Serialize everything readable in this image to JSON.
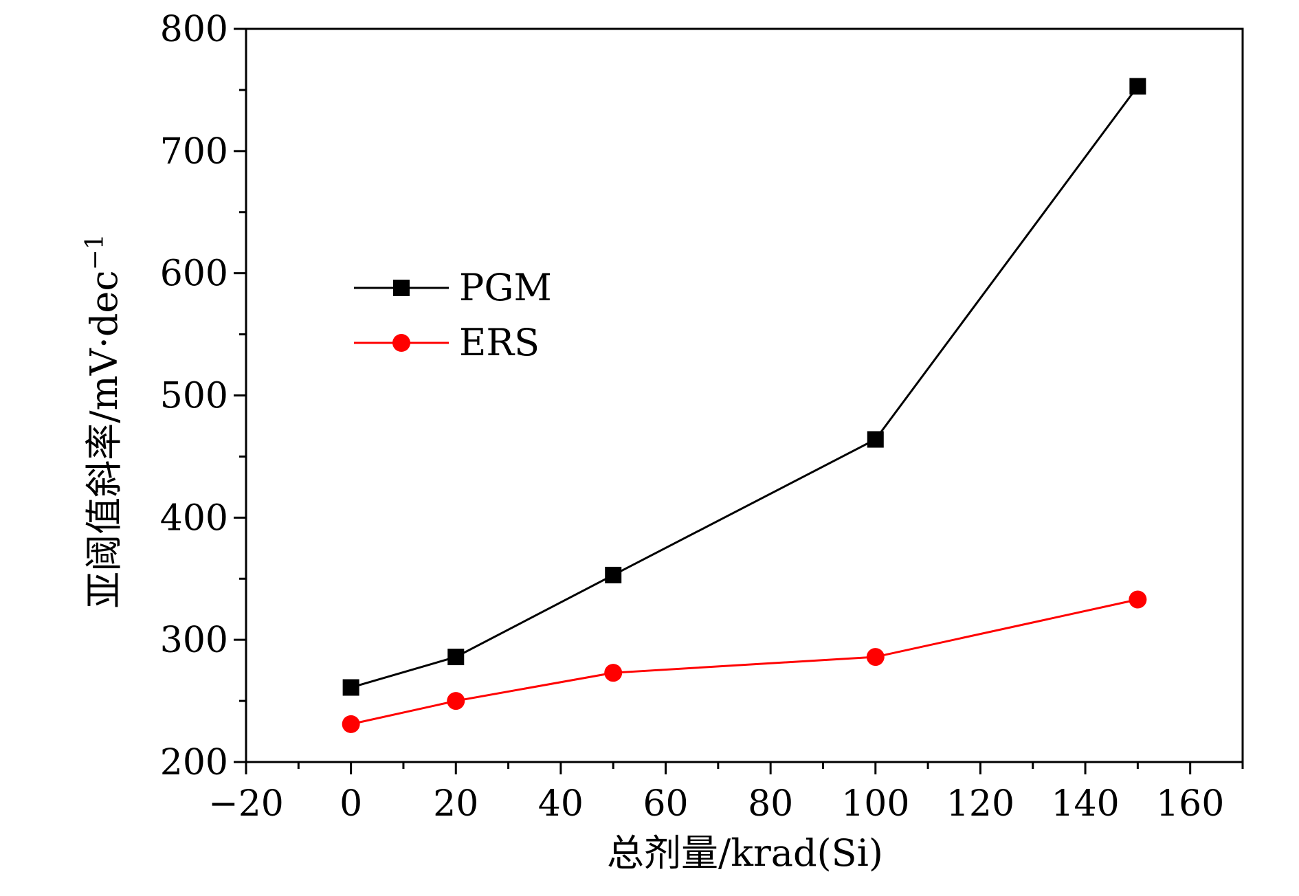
{
  "chart_data": {
    "type": "line",
    "title": "",
    "xlabel": "总剂量/krad(Si)",
    "ylabel": "亚阈值斜率/mV·dec",
    "ylabel_superscript": "−1",
    "xlim": [
      -20,
      170
    ],
    "ylim": [
      200,
      800
    ],
    "x_ticks": [
      -20,
      0,
      20,
      40,
      60,
      80,
      100,
      120,
      140,
      160
    ],
    "x_tick_labels": [
      "−20",
      "0",
      "20",
      "40",
      "60",
      "80",
      "100",
      "120",
      "140",
      "160"
    ],
    "y_ticks": [
      200,
      300,
      400,
      500,
      600,
      700,
      800
    ],
    "y_tick_labels": [
      "200",
      "300",
      "400",
      "500",
      "600",
      "700",
      "800"
    ],
    "x_minor_step": 10,
    "y_minor_step": 50,
    "grid": false,
    "legend_position": "upper-left",
    "x": [
      0,
      20,
      50,
      100,
      150
    ],
    "series": [
      {
        "name": "PGM",
        "values": [
          261,
          286,
          353,
          464,
          753
        ],
        "color": "#000000",
        "marker": "square"
      },
      {
        "name": "ERS",
        "values": [
          231,
          250,
          273,
          286,
          333
        ],
        "color": "#ff0000",
        "marker": "circle"
      }
    ]
  }
}
